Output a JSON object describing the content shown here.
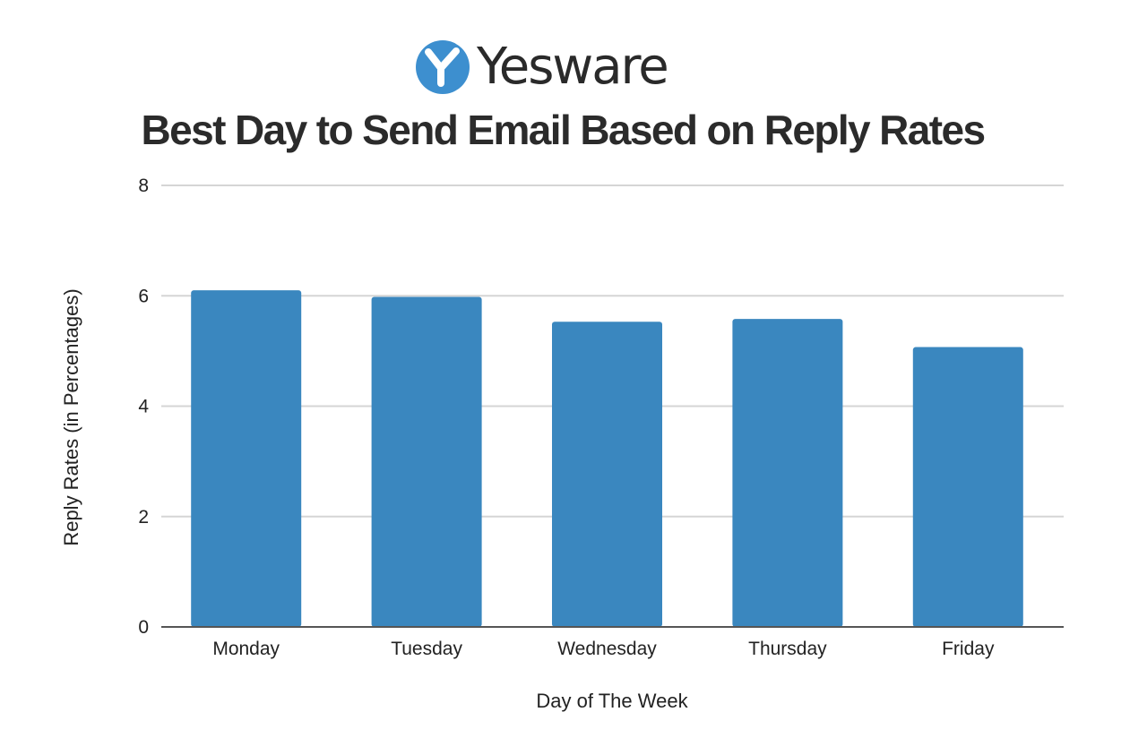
{
  "brand": {
    "name": "Yesware",
    "icon": "yesware-y-logo-icon",
    "color": "#3d8fcf"
  },
  "chart_data": {
    "type": "bar",
    "title": "Best Day to Send Email Based on Reply Rates",
    "xlabel": "Day of The Week",
    "ylabel": "Reply Rates (in Percentages)",
    "categories": [
      "Monday",
      "Tuesday",
      "Wednesday",
      "Thursday",
      "Friday"
    ],
    "values": [
      6.1,
      5.98,
      5.53,
      5.58,
      5.07
    ],
    "ylim": [
      0,
      8
    ],
    "yticks": [
      "0",
      "2",
      "4",
      "6",
      "8"
    ],
    "grid": true,
    "legend": "none",
    "bar_color": "#3a87bf",
    "grid_color": "#d5d5d5",
    "axis_color": "#555555"
  }
}
